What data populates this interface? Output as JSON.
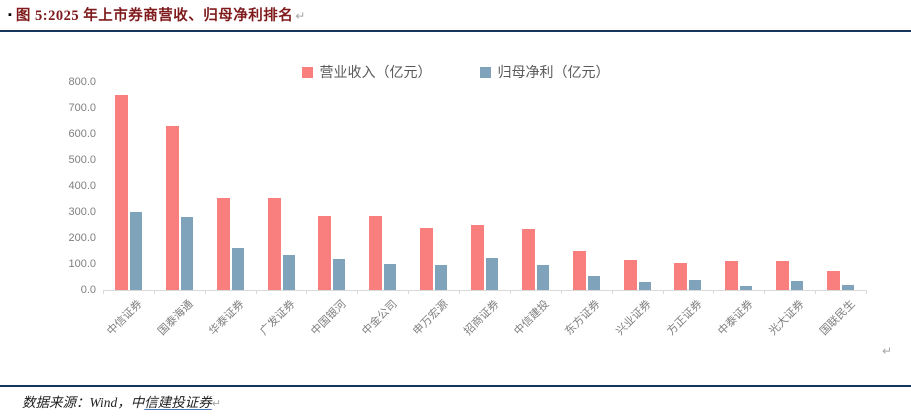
{
  "header": {
    "bullet": "▪",
    "title": "图 5:2025 年上市券商营收、归母净利排名",
    "return_mark": "↵"
  },
  "chart_data": {
    "type": "bar",
    "title": "",
    "categories": [
      "中信证券",
      "国泰海通",
      "华泰证券",
      "广发证券",
      "中国银河",
      "中金公司",
      "申万宏源",
      "招商证券",
      "中信建投",
      "东方证券",
      "兴业证券",
      "方正证券",
      "中泰证券",
      "光大证券",
      "国联民生"
    ],
    "series": [
      {
        "name": "营业收入（亿元）",
        "color": "#f97e7e",
        "values": [
          750,
          630,
          355,
          355,
          285,
          285,
          240,
          250,
          235,
          150,
          115,
          105,
          110,
          110,
          75
        ]
      },
      {
        "name": "归母净利（亿元）",
        "color": "#7ea3bb",
        "values": [
          300,
          280,
          160,
          135,
          120,
          100,
          95,
          125,
          95,
          55,
          30,
          40,
          15,
          35,
          20
        ]
      }
    ],
    "ylim": [
      0,
      800
    ],
    "ytick_step": 100,
    "ytick_decimals": 1,
    "legend_position": "top",
    "grid": false
  },
  "plot_return_mark": "↵",
  "footer": {
    "source_prefix": "数据来源：Wind，中",
    "source_link": "信建投证券",
    "return_mark": "↵"
  },
  "colors": {
    "accent_line": "#17365d",
    "title_text": "#7e1a1c",
    "axis_text": "#7f7f7f",
    "legend_text": "#595959",
    "revenue_bar": "#f97e7e",
    "profit_bar": "#7ea3bb"
  }
}
